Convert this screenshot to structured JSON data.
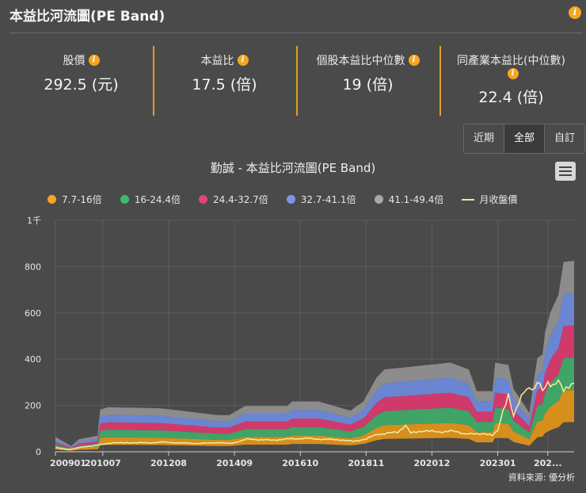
{
  "page": {
    "title": "本益比河流圖(PE Band)",
    "credit": "資料來源: 優分析"
  },
  "stats": [
    {
      "label": "股價",
      "value": "292.5 (元)"
    },
    {
      "label": "本益比",
      "value": "17.5 (倍)"
    },
    {
      "label": "個股本益比中位數",
      "value": "19 (倍)"
    },
    {
      "label": "同產業本益比(中位數)",
      "value": "22.4 (倍)"
    }
  ],
  "range_tabs": [
    "近期",
    "全部",
    "自訂"
  ],
  "range_active": "全部",
  "colors": {
    "bg": "#4a4a4a",
    "accent": "#f5a623",
    "band1": "#d68e1c",
    "band2": "#3fa466",
    "band3": "#cf3a6b",
    "band4": "#6a86d2",
    "band5": "#8c8c8c",
    "price": "#f1e6a0"
  },
  "chart_data": {
    "type": "area",
    "title": "勤誠 - 本益比河流圖(PE Band)",
    "legend": [
      "7.7-16倍",
      "16-24.4倍",
      "24.4-32.7倍",
      "32.7-41.1倍",
      "41.1-49.4倍",
      "月收盤價"
    ],
    "y_ticks": [
      "0",
      "200",
      "400",
      "600",
      "800",
      "1千"
    ],
    "ylim": [
      0,
      1000
    ],
    "x_ticks": [
      "200901",
      "201007",
      "201208",
      "201409",
      "201610",
      "201811",
      "202012",
      "202301",
      "202..."
    ],
    "x_tick_index": [
      0,
      18,
      43,
      68,
      93,
      118,
      143,
      168,
      187
    ],
    "n_months": 198,
    "multipliers": [
      7.7,
      16,
      24.4,
      32.7,
      41.1,
      49.4
    ],
    "eps_keypoints": [
      [
        0,
        1.3
      ],
      [
        6,
        0.5
      ],
      [
        9,
        1.1
      ],
      [
        16,
        1.4
      ],
      [
        17,
        3.7
      ],
      [
        20,
        3.9
      ],
      [
        40,
        3.8
      ],
      [
        62,
        3.2
      ],
      [
        66,
        3.2
      ],
      [
        72,
        4.0
      ],
      [
        88,
        4.0
      ],
      [
        90,
        4.4
      ],
      [
        100,
        4.4
      ],
      [
        112,
        3.6
      ],
      [
        117,
        4.4
      ],
      [
        122,
        6.5
      ],
      [
        125,
        7.2
      ],
      [
        150,
        7.8
      ],
      [
        157,
        7.2
      ],
      [
        160,
        5.3
      ],
      [
        166,
        5.3
      ],
      [
        167,
        7.8
      ],
      [
        172,
        7.6
      ],
      [
        174,
        5.5
      ],
      [
        180,
        3.4
      ],
      [
        183,
        8.2
      ],
      [
        185,
        8.5
      ],
      [
        186,
        10.5
      ],
      [
        188,
        12.2
      ],
      [
        191,
        13.7
      ],
      [
        193,
        16.6
      ],
      [
        197,
        16.7
      ]
    ],
    "price_keypoints": [
      [
        0,
        18
      ],
      [
        5,
        10
      ],
      [
        10,
        20
      ],
      [
        18,
        32
      ],
      [
        22,
        40
      ],
      [
        26,
        38
      ],
      [
        30,
        40
      ],
      [
        35,
        38
      ],
      [
        40,
        42
      ],
      [
        48,
        38
      ],
      [
        55,
        36
      ],
      [
        62,
        40
      ],
      [
        66,
        36
      ],
      [
        68,
        40
      ],
      [
        73,
        55
      ],
      [
        78,
        52
      ],
      [
        82,
        50
      ],
      [
        88,
        55
      ],
      [
        95,
        58
      ],
      [
        100,
        55
      ],
      [
        108,
        52
      ],
      [
        113,
        45
      ],
      [
        118,
        55
      ],
      [
        122,
        75
      ],
      [
        126,
        80
      ],
      [
        130,
        85
      ],
      [
        133,
        115
      ],
      [
        135,
        80
      ],
      [
        140,
        92
      ],
      [
        145,
        85
      ],
      [
        150,
        90
      ],
      [
        155,
        80
      ],
      [
        160,
        75
      ],
      [
        163,
        80
      ],
      [
        166,
        70
      ],
      [
        168,
        90
      ],
      [
        170,
        180
      ],
      [
        172,
        250
      ],
      [
        174,
        150
      ],
      [
        176,
        210
      ],
      [
        178,
        270
      ],
      [
        180,
        280
      ],
      [
        182,
        260
      ],
      [
        183,
        300
      ],
      [
        185,
        270
      ],
      [
        187,
        305
      ],
      [
        189,
        280
      ],
      [
        191,
        300
      ],
      [
        193,
        270
      ],
      [
        195,
        290
      ],
      [
        197,
        292.5
      ]
    ]
  }
}
